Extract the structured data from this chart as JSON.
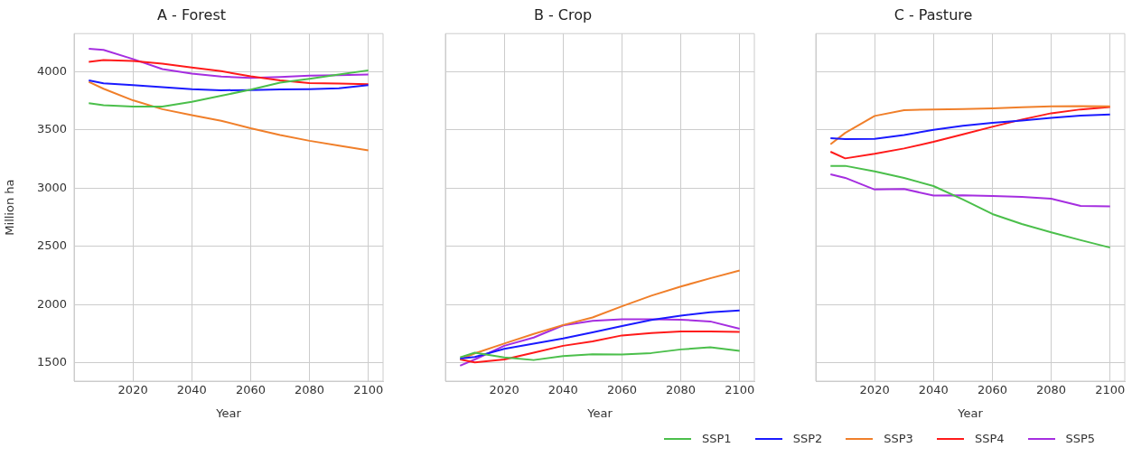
{
  "chart_data": [
    {
      "type": "line",
      "title": "A - Forest",
      "xlabel": "Year",
      "ylabel": "Million ha",
      "x": [
        2005,
        2010,
        2020,
        2030,
        2040,
        2050,
        2060,
        2070,
        2080,
        2090,
        2100
      ],
      "xlim": [
        2000,
        2105
      ],
      "xticks": [
        2020,
        2040,
        2060,
        2080,
        2100
      ],
      "ylim": [
        1345,
        4325
      ],
      "yticks": [
        1500,
        2000,
        2500,
        3000,
        3500,
        4000
      ],
      "grid": true,
      "line_style": "solid",
      "legend": "bottom right",
      "series": [
        {
          "name": "SSP1",
          "color": "#4bbf4b",
          "values": [
            3729,
            3711,
            3700,
            3700,
            3740,
            3792,
            3844,
            3904,
            3937,
            3974,
            4010
          ]
        },
        {
          "name": "SSP2",
          "color": "#1a1aff",
          "values": [
            3924,
            3898,
            3883,
            3865,
            3849,
            3839,
            3841,
            3846,
            3849,
            3857,
            3883
          ]
        },
        {
          "name": "SSP3",
          "color": "#f07f2a",
          "values": [
            3911,
            3852,
            3753,
            3677,
            3625,
            3578,
            3513,
            3456,
            3406,
            3365,
            3323
          ]
        },
        {
          "name": "SSP4",
          "color": "#ff1a1a",
          "values": [
            4083,
            4099,
            4091,
            4068,
            4034,
            4003,
            3958,
            3924,
            3901,
            3896,
            3891
          ]
        },
        {
          "name": "SSP5",
          "color": "#a52ee0",
          "values": [
            4195,
            4185,
            4107,
            4021,
            3982,
            3956,
            3945,
            3953,
            3964,
            3969,
            3974
          ]
        }
      ]
    },
    {
      "type": "line",
      "title": "B - Crop",
      "xlabel": "Year",
      "x": [
        2005,
        2010,
        2020,
        2030,
        2040,
        2050,
        2060,
        2070,
        2080,
        2090,
        2100
      ],
      "xlim": [
        2000,
        2105
      ],
      "xticks": [
        2020,
        2040,
        2060,
        2080,
        2100
      ],
      "ylim": [
        1345,
        4325
      ],
      "yticks": [
        1500,
        2000,
        2500,
        3000,
        3500,
        4000
      ],
      "tick_labels": "x",
      "grid": true,
      "line_style": "solid",
      "series": [
        {
          "color": "#4bbf4b",
          "values": [
            1549,
            1589,
            1549,
            1526,
            1560,
            1576,
            1573,
            1586,
            1617,
            1635,
            1604
          ]
        },
        {
          "color": "#1a1aff",
          "values": [
            1539,
            1552,
            1622,
            1667,
            1711,
            1763,
            1818,
            1870,
            1906,
            1935,
            1951
          ]
        },
        {
          "color": "#f07f2a",
          "values": [
            1531,
            1583,
            1667,
            1750,
            1826,
            1891,
            1987,
            2078,
            2156,
            2227,
            2294
          ]
        },
        {
          "color": "#ff1a1a",
          "values": [
            1531,
            1505,
            1531,
            1589,
            1648,
            1685,
            1737,
            1758,
            1771,
            1771,
            1768
          ]
        },
        {
          "color": "#a52ee0",
          "values": [
            1477,
            1531,
            1648,
            1719,
            1823,
            1862,
            1875,
            1875,
            1872,
            1857,
            1794
          ]
        }
      ]
    },
    {
      "type": "line",
      "title": "C - Pasture",
      "xlabel": "Year",
      "x": [
        2005,
        2010,
        2020,
        2030,
        2040,
        2050,
        2060,
        2070,
        2080,
        2090,
        2100
      ],
      "xlim": [
        2000,
        2105
      ],
      "xticks": [
        2020,
        2040,
        2060,
        2080,
        2100
      ],
      "ylim": [
        1345,
        4325
      ],
      "yticks": [
        1500,
        2000,
        2500,
        3000,
        3500,
        4000
      ],
      "tick_labels": "x",
      "grid": true,
      "line_style": "solid",
      "series": [
        {
          "color": "#4bbf4b",
          "values": [
            3191,
            3191,
            3144,
            3088,
            3018,
            2902,
            2778,
            2693,
            2621,
            2554,
            2490
          ]
        },
        {
          "color": "#1a1aff",
          "values": [
            3428,
            3420,
            3423,
            3456,
            3500,
            3534,
            3559,
            3580,
            3603,
            3621,
            3631
          ]
        },
        {
          "color": "#f07f2a",
          "values": [
            3376,
            3474,
            3619,
            3668,
            3675,
            3678,
            3683,
            3693,
            3701,
            3704,
            3701
          ]
        },
        {
          "color": "#ff1a1a",
          "values": [
            3312,
            3255,
            3294,
            3340,
            3397,
            3461,
            3526,
            3588,
            3642,
            3675,
            3696
          ]
        },
        {
          "color": "#a52ee0",
          "values": [
            3119,
            3088,
            2988,
            2993,
            2936,
            2938,
            2933,
            2925,
            2910,
            2848,
            2843
          ]
        }
      ]
    }
  ]
}
